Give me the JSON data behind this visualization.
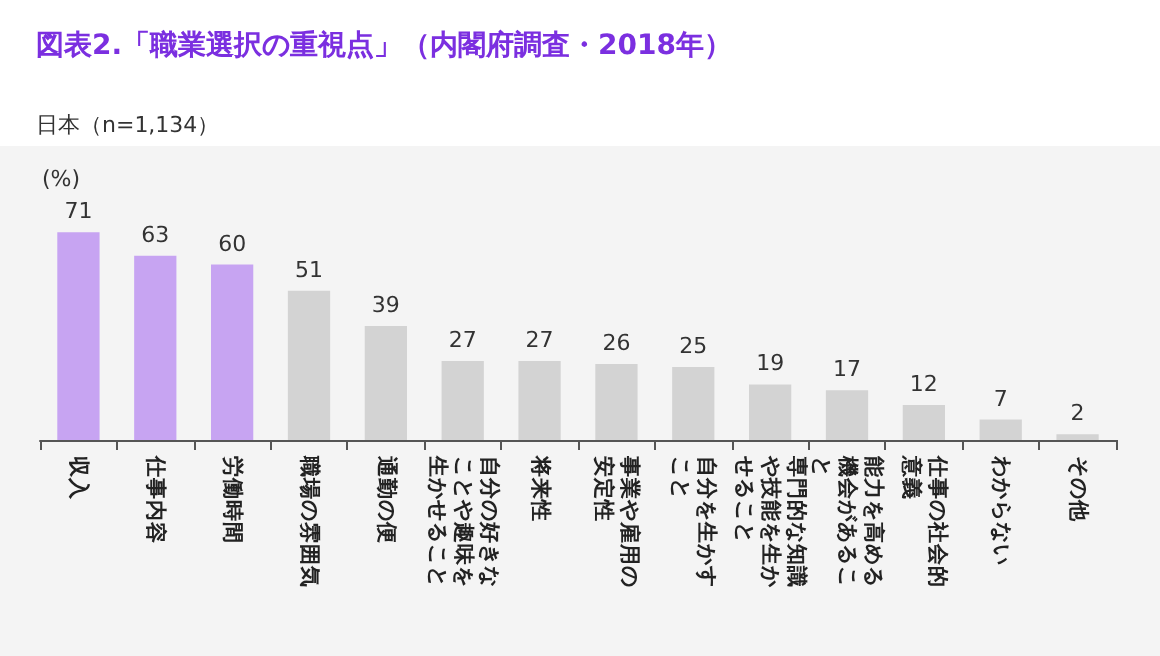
{
  "chart_data": {
    "type": "bar",
    "title": "図表2.「職業選択の重視点」（内閣府調査・2018年）",
    "subtitle": "日本（n=1,134）",
    "ylabel": "(%)",
    "categories": [
      "収入",
      "仕事内容",
      "労働時間",
      "職場の雰囲気",
      "通勤の便",
      "自分の好きなことや趣味を生かせること",
      "将来性",
      "事業や雇用の安定性",
      "自分を生かすこと",
      "専門的な知識や技能を生かせること",
      "能力を高める機会があること",
      "仕事の社会的意義",
      "わからない",
      "その他"
    ],
    "values": [
      71,
      63,
      60,
      51,
      39,
      27,
      27,
      26,
      25,
      19,
      17,
      12,
      7,
      2
    ],
    "colors": [
      "#c7a4f2",
      "#c7a4f2",
      "#c7a4f2",
      "#d3d3d3",
      "#d3d3d3",
      "#d3d3d3",
      "#d3d3d3",
      "#d3d3d3",
      "#d3d3d3",
      "#d3d3d3",
      "#d3d3d3",
      "#d3d3d3",
      "#d3d3d3",
      "#d3d3d3"
    ],
    "data_labels": true
  }
}
